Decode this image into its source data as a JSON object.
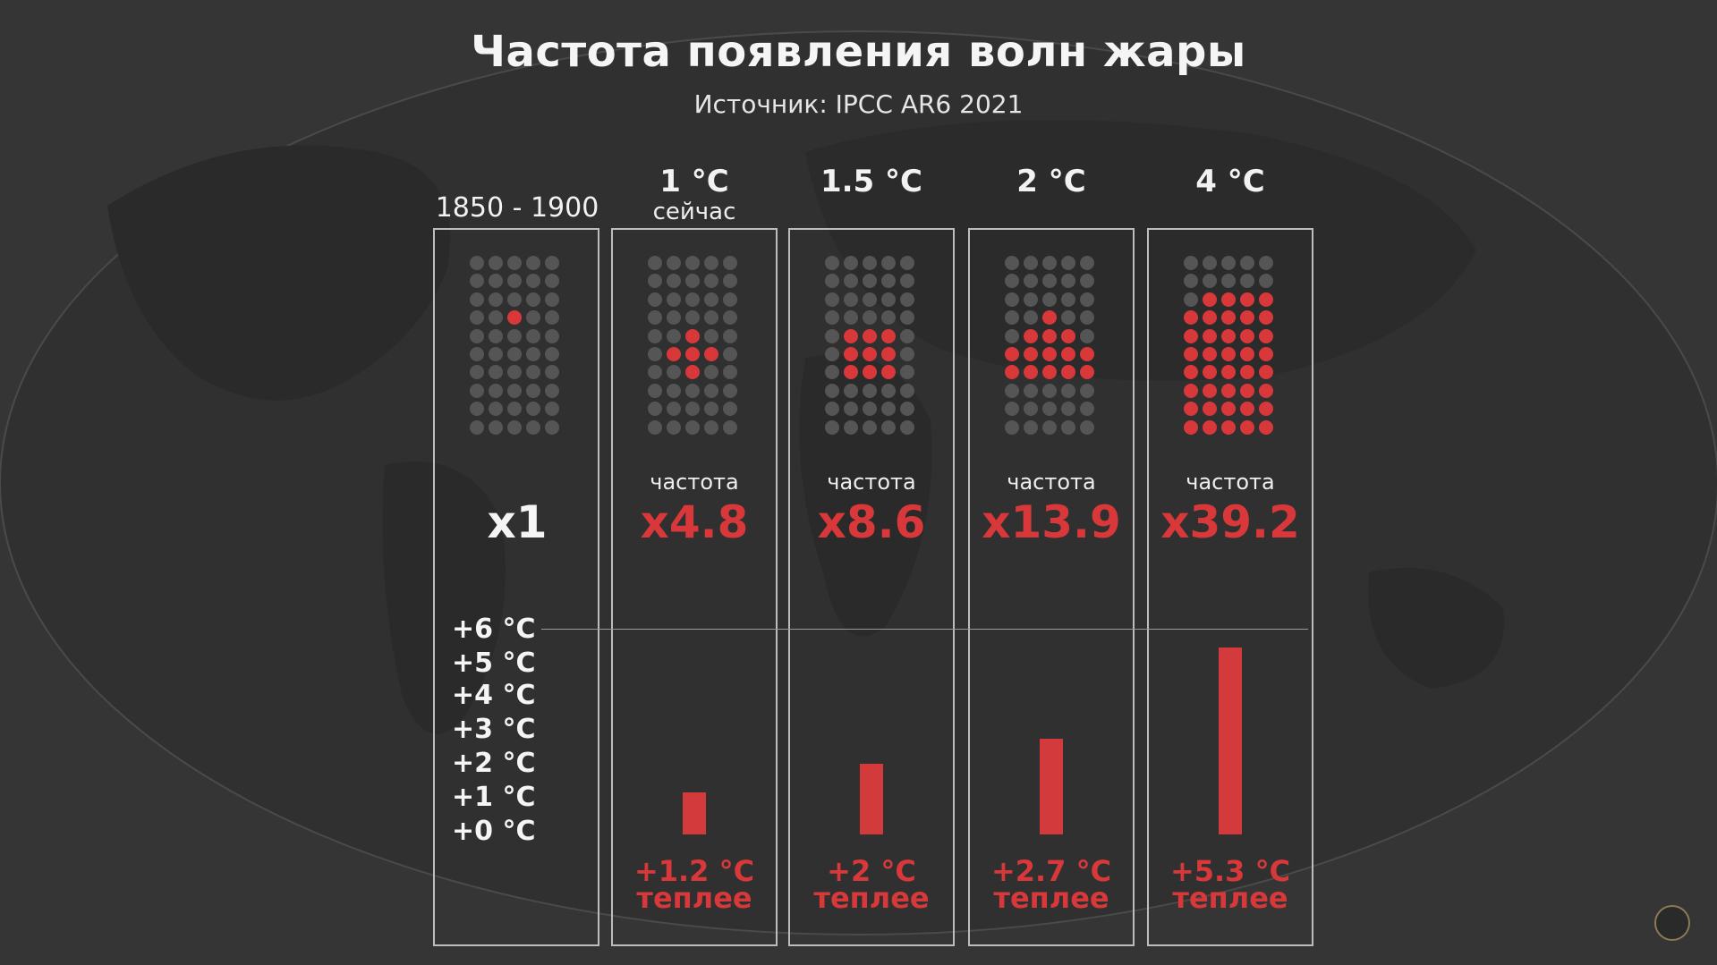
{
  "title": "Частота появления волн жары",
  "subtitle": "Источник: IPCC AR6 2021",
  "colors": {
    "hot": "#d9383a",
    "dot_off": "#555555"
  },
  "scale_ticks": [
    "+6 °C",
    "+5 °C",
    "+4 °C",
    "+3 °C",
    "+2 °C",
    "+1 °C",
    "+0 °C"
  ],
  "columns": [
    {
      "heading": "1850 - 1900",
      "sub": "",
      "freq_label": "",
      "freq_value": "x1",
      "warm_value": "",
      "warm_word": "",
      "hot_dots": 1
    },
    {
      "heading": "1 °C",
      "sub": "сейчас",
      "freq_label": "частота",
      "freq_value": "x4.8",
      "warm_value": "+1.2 °C",
      "warm_word": "теплее",
      "hot_dots": 5
    },
    {
      "heading": "1.5 °C",
      "sub": "",
      "freq_label": "частота",
      "freq_value": "x8.6",
      "warm_value": "+2 °C",
      "warm_word": "теплее",
      "hot_dots": 9
    },
    {
      "heading": "2 °C",
      "sub": "",
      "freq_label": "частота",
      "freq_value": "x13.9",
      "warm_value": "+2.7 °C",
      "warm_word": "теплее",
      "hot_dots": 14
    },
    {
      "heading": "4 °C",
      "sub": "",
      "freq_label": "частота",
      "freq_value": "x39.2",
      "warm_value": "+5.3 °C",
      "warm_word": "теплее",
      "hot_dots": 39
    }
  ],
  "chart_data": {
    "type": "bar",
    "title": "Частота появления волн жары",
    "subtitle": "Источник: IPCC AR6 2021",
    "categories": [
      "1850 - 1900",
      "1 °C",
      "1.5 °C",
      "2 °C",
      "4 °C"
    ],
    "series": [
      {
        "values": [
          0,
          1.2,
          2,
          2.7,
          5.3
        ]
      }
    ],
    "frequency_multiplier": [
      1,
      4.8,
      8.6,
      13.9,
      39.2
    ],
    "ylim": [
      0,
      6
    ],
    "ytick_labels": [
      "+0 °C",
      "+1 °C",
      "+2 °C",
      "+3 °C",
      "+4 °C",
      "+5 °C",
      "+6 °C"
    ],
    "grid": false,
    "legend": "none"
  }
}
